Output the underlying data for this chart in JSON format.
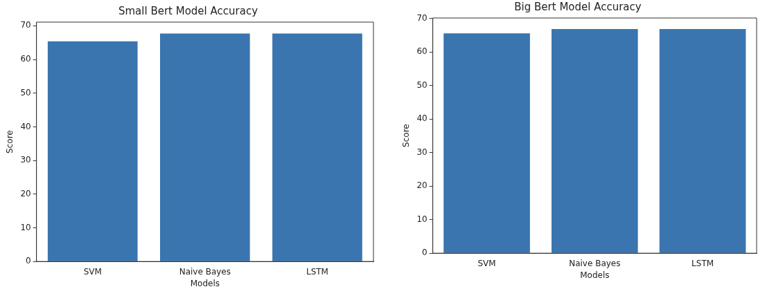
{
  "chart_data": [
    {
      "type": "bar",
      "title": "Small Bert Model Accuracy",
      "xlabel": "Models",
      "ylabel": "Score",
      "categories": [
        "SVM",
        "Naive Bayes",
        "LSTM"
      ],
      "values": [
        65.4,
        67.7,
        67.7
      ],
      "color": "#3a75af",
      "ylim": [
        0,
        71.1
      ],
      "yticks": [
        0,
        10,
        20,
        30,
        40,
        50,
        60,
        70
      ],
      "grid": false,
      "legend": false
    },
    {
      "type": "bar",
      "title": "Big Bert Model Accuracy",
      "xlabel": "Models",
      "ylabel": "Score",
      "categories": [
        "SVM",
        "Naive Bayes",
        "LSTM"
      ],
      "values": [
        65.5,
        66.8,
        66.8
      ],
      "color": "#3a75af",
      "ylim": [
        0,
        70.1
      ],
      "yticks": [
        0,
        10,
        20,
        30,
        40,
        50,
        60,
        70
      ],
      "grid": false,
      "legend": false
    }
  ]
}
